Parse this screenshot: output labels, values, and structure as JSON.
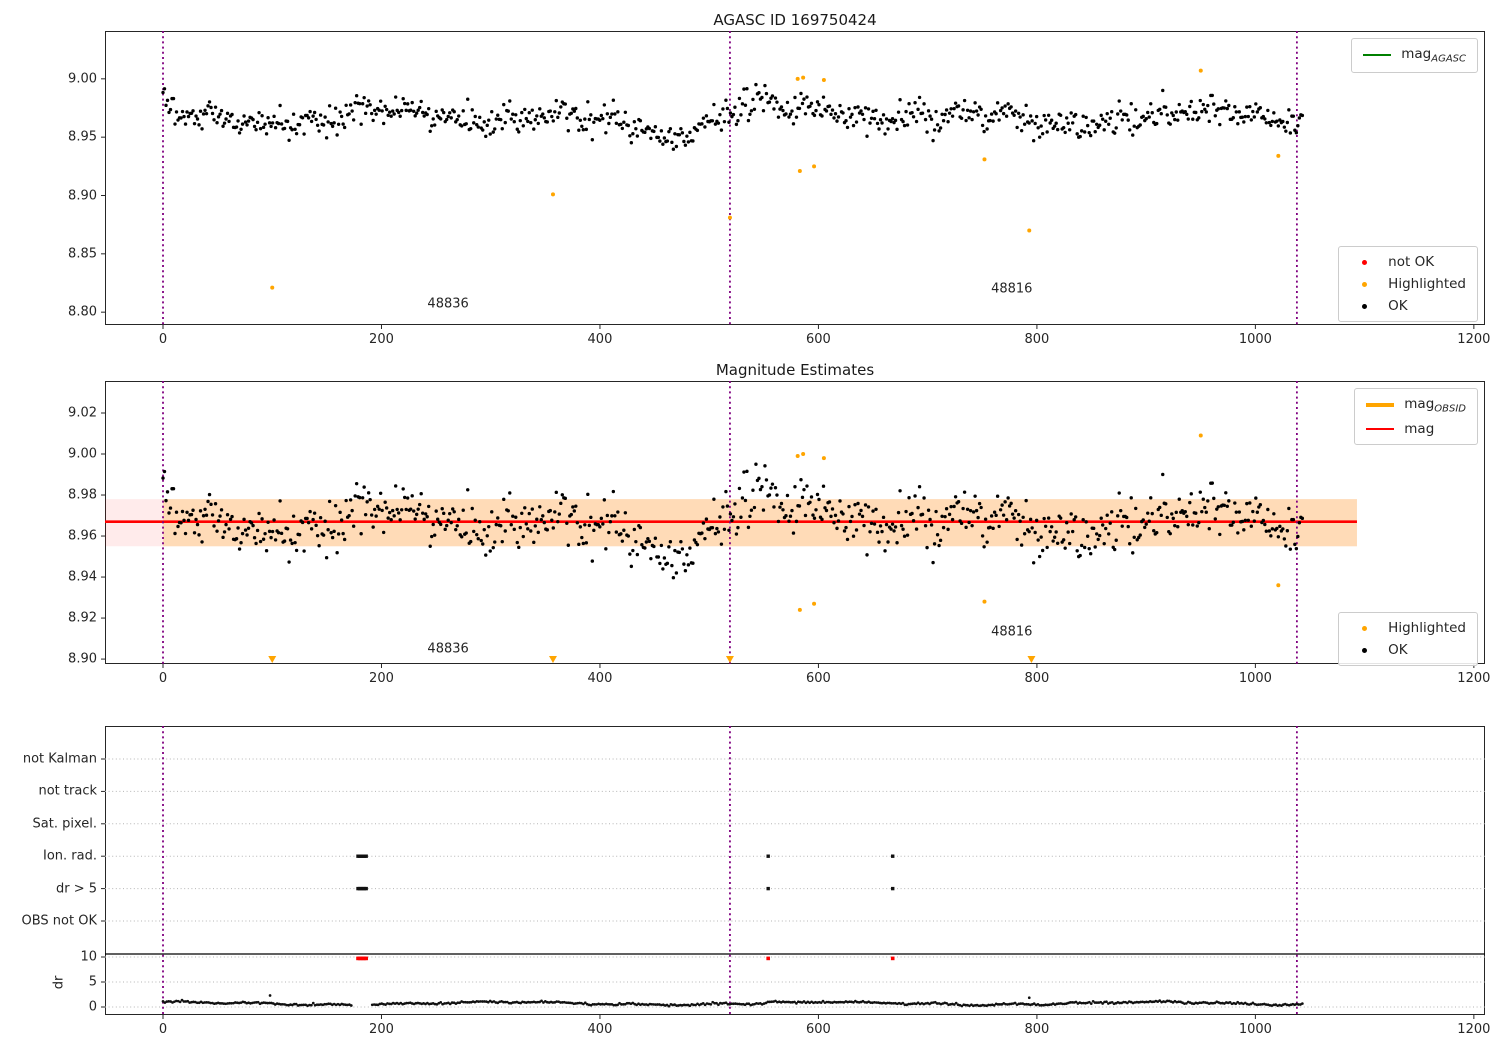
{
  "colors": {
    "purple": "#800080",
    "orange": "#FFA500",
    "red": "#FF0000",
    "green": "#008000",
    "black": "#000000",
    "grid": "#b5b5b5",
    "spine": "#262626"
  },
  "chart_data": [
    {
      "type": "scatter",
      "title": "AGASC ID 169750424",
      "xlim": [
        -53.1,
        1210.2
      ],
      "ylim": [
        8.789,
        9.041
      ],
      "xticks": {
        "values": [
          0,
          200,
          400,
          600,
          800,
          1000,
          1200
        ],
        "labels": [
          "0",
          "200",
          "400",
          "600",
          "800",
          "1000",
          "1200"
        ]
      },
      "yticks": {
        "values": [
          9.0,
          8.95,
          8.9,
          8.85,
          8.8
        ],
        "labels": [
          "9.00",
          "8.95",
          "8.90",
          "8.85",
          "8.80"
        ]
      },
      "vlines": [
        0,
        519,
        1038
      ],
      "ok_series": {
        "seed": 20240613,
        "n": 760,
        "x_min": 0,
        "x_max": 1043,
        "mean": 8.967,
        "sigma": 0.0062,
        "clamp": [
          8.931,
          9.003
        ]
      },
      "highlighted_points": [
        [
          100,
          8.821
        ],
        [
          357,
          8.901
        ],
        [
          519,
          8.881
        ],
        [
          581,
          9.0
        ],
        [
          586,
          9.001
        ],
        [
          605,
          8.999
        ],
        [
          583,
          8.921
        ],
        [
          596,
          8.925
        ],
        [
          752,
          8.931
        ],
        [
          793,
          8.87
        ],
        [
          950,
          9.007
        ],
        [
          1021,
          8.934
        ]
      ],
      "not_ok_points": [],
      "annotations": [
        {
          "text": "48836",
          "x": 261,
          "y": 8.807
        },
        {
          "text": "48816",
          "x": 777,
          "y": 8.82
        }
      ],
      "legend_line": [
        {
          "label": "mag",
          "sub": "AGASC",
          "color": "green",
          "thick": false
        }
      ],
      "legend_markers": [
        {
          "label": "not OK",
          "color": "red"
        },
        {
          "label": "Highlighted",
          "color": "orange"
        },
        {
          "label": "OK",
          "color": "black"
        }
      ]
    },
    {
      "type": "scatter",
      "title": "Magnitude Estimates",
      "xlim": [
        -53.1,
        1210.2
      ],
      "ylim": [
        8.8976,
        9.0356
      ],
      "xticks": {
        "values": [
          0,
          200,
          400,
          600,
          800,
          1000,
          1200
        ],
        "labels": [
          "0",
          "200",
          "400",
          "600",
          "800",
          "1000",
          "1200"
        ]
      },
      "yticks": {
        "values": [
          9.02,
          9.0,
          8.98,
          8.96,
          8.94,
          8.92,
          8.9
        ],
        "labels": [
          "9.02",
          "9.00",
          "8.98",
          "8.96",
          "8.94",
          "8.92",
          "8.90"
        ]
      },
      "vlines": [
        0,
        519,
        1038
      ],
      "mag_line": {
        "value": 8.967,
        "x_end": 1093
      },
      "mag_band": {
        "lo": 8.955,
        "hi": 8.978,
        "x_end": 1093,
        "alpha": 0.08
      },
      "obsid_band": {
        "lo": 8.955,
        "hi": 8.978,
        "x_start": 0,
        "x_end": 1093,
        "alpha": 0.22
      },
      "ok_series": {
        "seed": 20240613,
        "n": 760,
        "x_min": 0,
        "x_max": 1043,
        "mean": 8.967,
        "sigma": 0.0062,
        "clamp": [
          8.931,
          9.003
        ]
      },
      "highlighted_points": [
        [
          581,
          8.999
        ],
        [
          586,
          9.0
        ],
        [
          605,
          8.998
        ],
        [
          583,
          8.924
        ],
        [
          596,
          8.927
        ],
        [
          752,
          8.928
        ],
        [
          950,
          9.009
        ],
        [
          1021,
          8.936
        ]
      ],
      "clipped_highlighted_x": [
        100,
        357,
        519,
        795
      ],
      "annotations": [
        {
          "text": "48836",
          "x": 261,
          "y": 8.905
        },
        {
          "text": "48816",
          "x": 777,
          "y": 8.913
        }
      ],
      "legend_line": [
        {
          "label": "mag",
          "sub": "OBSID",
          "color": "orange",
          "thick": true
        },
        {
          "label": "mag",
          "sub": "",
          "color": "red",
          "thick": false
        }
      ],
      "legend_markers": [
        {
          "label": "Highlighted",
          "color": "orange"
        },
        {
          "label": "OK",
          "color": "black"
        }
      ]
    },
    {
      "type": "flags",
      "categories": [
        "not Kalman",
        "not track",
        "Sat. pixel.",
        "Ion. rad.",
        "dr > 5",
        "OBS not OK"
      ],
      "dr_ticks": {
        "values": [
          10,
          5,
          0
        ],
        "labels": [
          "10",
          "5",
          "0"
        ]
      },
      "dr_label": "dr",
      "xticks": {
        "values": [
          0,
          200,
          400,
          600,
          800,
          1000,
          1200
        ],
        "labels": [
          "0",
          "200",
          "400",
          "600",
          "800",
          "1000",
          "1200"
        ]
      },
      "vlines": [
        0,
        519,
        1038
      ],
      "flag_events": {
        "ion_rad": [
          178.5,
          180,
          181.5,
          183,
          184.5,
          186,
          554,
          668
        ],
        "dr_gt_5": [
          178.5,
          180,
          181.5,
          183,
          184.5,
          186,
          554,
          668
        ]
      },
      "dr_red_points": {
        "xs": [
          178.5,
          180,
          181.5,
          183,
          184.5,
          186,
          554,
          668
        ],
        "value": 10
      },
      "dr_series": {
        "seed": 77,
        "n": 600,
        "x_min": 0,
        "x_max": 1043,
        "gap": [
          174,
          191
        ],
        "spikes": [
          [
            98,
            2.3
          ],
          [
            793,
            1.85
          ]
        ]
      },
      "separator_value": 10.6
    }
  ]
}
